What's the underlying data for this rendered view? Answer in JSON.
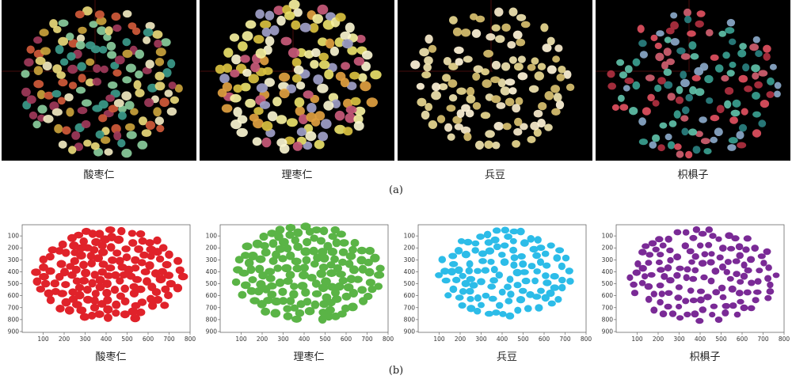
{
  "panel_a": {
    "label": "(a)",
    "photos": [
      {
        "caption": "酸枣仁",
        "palette": [
          "#c9a23c",
          "#e8d87a",
          "#3c9a8a",
          "#d05a3a",
          "#8acc9c",
          "#a03a5a",
          "#f0e8c0"
        ]
      },
      {
        "caption": "理枣仁",
        "palette": [
          "#e8e06a",
          "#d8c040",
          "#f5f0a0",
          "#c85a7a",
          "#a0a0c8",
          "#e0a040",
          "#f8f4d0"
        ]
      },
      {
        "caption": "兵豆",
        "palette": [
          "#f0e4b0",
          "#e8d890",
          "#fff4d8",
          "#d8c070",
          "#f8eccc"
        ]
      },
      {
        "caption": "枳椇子",
        "palette": [
          "#3aa090",
          "#60c0a8",
          "#b03040",
          "#d06070",
          "#2a8080",
          "#8aa8c8",
          "#e05060"
        ]
      }
    ]
  },
  "panel_b": {
    "label": "(b)",
    "charts": [
      {
        "caption": "酸枣仁",
        "color": "#e0222a"
      },
      {
        "caption": "理枣仁",
        "color": "#5ab446"
      },
      {
        "caption": "兵豆",
        "color": "#2cbce8"
      },
      {
        "caption": "枳椇子",
        "color": "#7a2a96"
      }
    ],
    "x_ticks": [
      "100",
      "200",
      "300",
      "400",
      "500",
      "600",
      "700",
      "800"
    ],
    "y_ticks": [
      "100",
      "200",
      "300",
      "400",
      "500",
      "600",
      "700",
      "800",
      "900"
    ]
  },
  "chart_data": [
    {
      "type": "scatter",
      "x_range": [
        0,
        800
      ],
      "y_range": [
        900,
        0
      ],
      "grid": false,
      "series": []
    },
    {
      "type": "scatter",
      "x_range": [
        0,
        800
      ],
      "y_range": [
        900,
        0
      ],
      "grid": false,
      "series": []
    },
    {
      "type": "scatter",
      "x_range": [
        0,
        800
      ],
      "y_range": [
        900,
        0
      ],
      "grid": false,
      "series": []
    },
    {
      "type": "scatter",
      "x_range": [
        0,
        800
      ],
      "y_range": [
        900,
        0
      ],
      "grid": false,
      "series": []
    }
  ]
}
